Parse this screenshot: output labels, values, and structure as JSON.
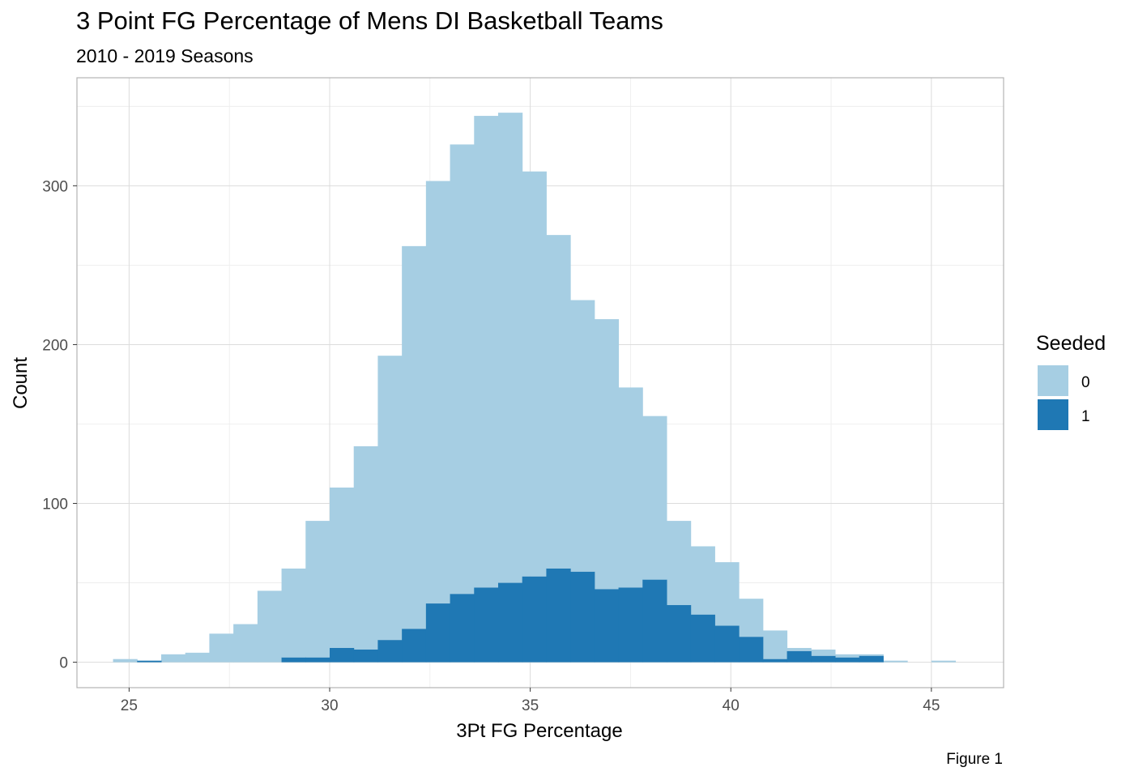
{
  "chart_data": {
    "type": "histogram",
    "title": "3 Point FG Percentage of Mens DI Basketball Teams",
    "subtitle": "2010 - 2019 Seasons",
    "xlabel": "3Pt FG Percentage",
    "ylabel": "Count",
    "caption": "Figure 1",
    "xlim": [
      23.7,
      46.8
    ],
    "ylim": [
      -16,
      368
    ],
    "x_ticks": [
      25,
      30,
      35,
      40,
      45
    ],
    "y_ticks": [
      0,
      100,
      200,
      300
    ],
    "grid": true,
    "bin_width": 0.6,
    "legend": {
      "title": "Seeded",
      "position": "right",
      "entries": [
        {
          "label": "0",
          "color": "#a6cee3"
        },
        {
          "label": "1",
          "color": "#1f78b4"
        }
      ]
    },
    "series": [
      {
        "name": "0",
        "color": "#a6cee3",
        "bins": [
          {
            "x0": 24.6,
            "x1": 25.2,
            "count": 2
          },
          {
            "x0": 25.2,
            "x1": 25.8,
            "count": 0
          },
          {
            "x0": 25.8,
            "x1": 26.4,
            "count": 5
          },
          {
            "x0": 26.4,
            "x1": 27.0,
            "count": 6
          },
          {
            "x0": 27.0,
            "x1": 27.6,
            "count": 18
          },
          {
            "x0": 27.6,
            "x1": 28.2,
            "count": 24
          },
          {
            "x0": 28.2,
            "x1": 28.8,
            "count": 45
          },
          {
            "x0": 28.8,
            "x1": 29.4,
            "count": 56
          },
          {
            "x0": 29.4,
            "x1": 30.0,
            "count": 86
          },
          {
            "x0": 30.0,
            "x1": 30.6,
            "count": 101
          },
          {
            "x0": 30.6,
            "x1": 31.2,
            "count": 128
          },
          {
            "x0": 31.2,
            "x1": 31.8,
            "count": 179
          },
          {
            "x0": 31.8,
            "x1": 32.4,
            "count": 241
          },
          {
            "x0": 32.4,
            "x1": 33.0,
            "count": 266
          },
          {
            "x0": 33.0,
            "x1": 33.6,
            "count": 283
          },
          {
            "x0": 33.6,
            "x1": 34.2,
            "count": 297
          },
          {
            "x0": 34.2,
            "x1": 34.8,
            "count": 296
          },
          {
            "x0": 34.8,
            "x1": 35.4,
            "count": 255
          },
          {
            "x0": 35.4,
            "x1": 36.0,
            "count": 210
          },
          {
            "x0": 36.0,
            "x1": 36.6,
            "count": 171
          },
          {
            "x0": 36.6,
            "x1": 37.2,
            "count": 170
          },
          {
            "x0": 37.2,
            "x1": 37.8,
            "count": 126
          },
          {
            "x0": 37.8,
            "x1": 38.4,
            "count": 103
          },
          {
            "x0": 38.4,
            "x1": 39.0,
            "count": 53
          },
          {
            "x0": 39.0,
            "x1": 39.6,
            "count": 43
          },
          {
            "x0": 39.6,
            "x1": 40.2,
            "count": 40
          },
          {
            "x0": 40.2,
            "x1": 40.8,
            "count": 24
          },
          {
            "x0": 40.8,
            "x1": 41.4,
            "count": 18
          },
          {
            "x0": 41.4,
            "x1": 42.0,
            "count": 2
          },
          {
            "x0": 42.0,
            "x1": 42.6,
            "count": 4
          },
          {
            "x0": 42.6,
            "x1": 43.2,
            "count": 2
          },
          {
            "x0": 43.2,
            "x1": 43.8,
            "count": 1
          },
          {
            "x0": 43.8,
            "x1": 44.4,
            "count": 1
          },
          {
            "x0": 44.4,
            "x1": 45.0,
            "count": 0
          },
          {
            "x0": 45.0,
            "x1": 45.6,
            "count": 1
          }
        ]
      },
      {
        "name": "1",
        "color": "#1f78b4",
        "bins": [
          {
            "x0": 25.2,
            "x1": 25.8,
            "count": 1
          },
          {
            "x0": 28.8,
            "x1": 29.4,
            "count": 3
          },
          {
            "x0": 29.4,
            "x1": 30.0,
            "count": 3
          },
          {
            "x0": 30.0,
            "x1": 30.6,
            "count": 9
          },
          {
            "x0": 30.6,
            "x1": 31.2,
            "count": 8
          },
          {
            "x0": 31.2,
            "x1": 31.8,
            "count": 14
          },
          {
            "x0": 31.8,
            "x1": 32.4,
            "count": 21
          },
          {
            "x0": 32.4,
            "x1": 33.0,
            "count": 37
          },
          {
            "x0": 33.0,
            "x1": 33.6,
            "count": 43
          },
          {
            "x0": 33.6,
            "x1": 34.2,
            "count": 47
          },
          {
            "x0": 34.2,
            "x1": 34.8,
            "count": 50
          },
          {
            "x0": 34.8,
            "x1": 35.4,
            "count": 54
          },
          {
            "x0": 35.4,
            "x1": 36.0,
            "count": 59
          },
          {
            "x0": 36.0,
            "x1": 36.6,
            "count": 57
          },
          {
            "x0": 36.6,
            "x1": 37.2,
            "count": 46
          },
          {
            "x0": 37.2,
            "x1": 37.8,
            "count": 47
          },
          {
            "x0": 37.8,
            "x1": 38.4,
            "count": 52
          },
          {
            "x0": 38.4,
            "x1": 39.0,
            "count": 36
          },
          {
            "x0": 39.0,
            "x1": 39.6,
            "count": 30
          },
          {
            "x0": 39.6,
            "x1": 40.2,
            "count": 23
          },
          {
            "x0": 40.2,
            "x1": 40.8,
            "count": 16
          },
          {
            "x0": 40.8,
            "x1": 41.4,
            "count": 2
          },
          {
            "x0": 41.4,
            "x1": 42.0,
            "count": 7
          },
          {
            "x0": 42.0,
            "x1": 42.6,
            "count": 4
          },
          {
            "x0": 42.6,
            "x1": 43.2,
            "count": 3
          },
          {
            "x0": 43.2,
            "x1": 43.8,
            "count": 4
          }
        ]
      }
    ]
  }
}
